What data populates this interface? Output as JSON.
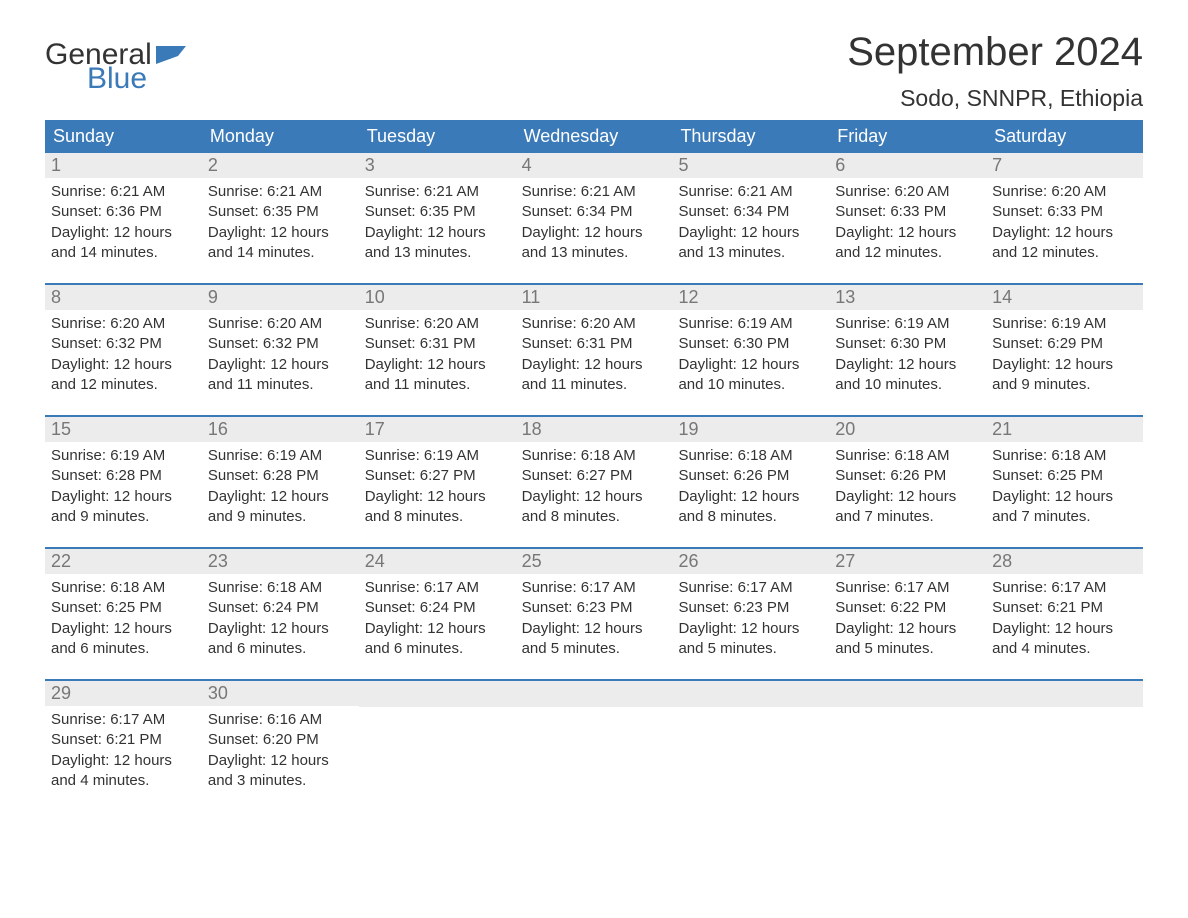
{
  "logo": {
    "line1": "General",
    "line2": "Blue",
    "color1": "#333333",
    "color2": "#3a7ab8"
  },
  "title": "September 2024",
  "location": "Sodo, SNNPR, Ethiopia",
  "weekdays": [
    "Sunday",
    "Monday",
    "Tuesday",
    "Wednesday",
    "Thursday",
    "Friday",
    "Saturday"
  ],
  "colors": {
    "header_bg": "#3a7ab8",
    "header_text": "#ffffff",
    "daynum_bg": "#ececec",
    "daynum_text": "#777777",
    "body_text": "#333333",
    "divider": "#3a7ab8",
    "background": "#ffffff"
  },
  "weeks": [
    [
      {
        "day": "1",
        "sunrise": "Sunrise: 6:21 AM",
        "sunset": "Sunset: 6:36 PM",
        "daylight1": "Daylight: 12 hours",
        "daylight2": "and 14 minutes."
      },
      {
        "day": "2",
        "sunrise": "Sunrise: 6:21 AM",
        "sunset": "Sunset: 6:35 PM",
        "daylight1": "Daylight: 12 hours",
        "daylight2": "and 14 minutes."
      },
      {
        "day": "3",
        "sunrise": "Sunrise: 6:21 AM",
        "sunset": "Sunset: 6:35 PM",
        "daylight1": "Daylight: 12 hours",
        "daylight2": "and 13 minutes."
      },
      {
        "day": "4",
        "sunrise": "Sunrise: 6:21 AM",
        "sunset": "Sunset: 6:34 PM",
        "daylight1": "Daylight: 12 hours",
        "daylight2": "and 13 minutes."
      },
      {
        "day": "5",
        "sunrise": "Sunrise: 6:21 AM",
        "sunset": "Sunset: 6:34 PM",
        "daylight1": "Daylight: 12 hours",
        "daylight2": "and 13 minutes."
      },
      {
        "day": "6",
        "sunrise": "Sunrise: 6:20 AM",
        "sunset": "Sunset: 6:33 PM",
        "daylight1": "Daylight: 12 hours",
        "daylight2": "and 12 minutes."
      },
      {
        "day": "7",
        "sunrise": "Sunrise: 6:20 AM",
        "sunset": "Sunset: 6:33 PM",
        "daylight1": "Daylight: 12 hours",
        "daylight2": "and 12 minutes."
      }
    ],
    [
      {
        "day": "8",
        "sunrise": "Sunrise: 6:20 AM",
        "sunset": "Sunset: 6:32 PM",
        "daylight1": "Daylight: 12 hours",
        "daylight2": "and 12 minutes."
      },
      {
        "day": "9",
        "sunrise": "Sunrise: 6:20 AM",
        "sunset": "Sunset: 6:32 PM",
        "daylight1": "Daylight: 12 hours",
        "daylight2": "and 11 minutes."
      },
      {
        "day": "10",
        "sunrise": "Sunrise: 6:20 AM",
        "sunset": "Sunset: 6:31 PM",
        "daylight1": "Daylight: 12 hours",
        "daylight2": "and 11 minutes."
      },
      {
        "day": "11",
        "sunrise": "Sunrise: 6:20 AM",
        "sunset": "Sunset: 6:31 PM",
        "daylight1": "Daylight: 12 hours",
        "daylight2": "and 11 minutes."
      },
      {
        "day": "12",
        "sunrise": "Sunrise: 6:19 AM",
        "sunset": "Sunset: 6:30 PM",
        "daylight1": "Daylight: 12 hours",
        "daylight2": "and 10 minutes."
      },
      {
        "day": "13",
        "sunrise": "Sunrise: 6:19 AM",
        "sunset": "Sunset: 6:30 PM",
        "daylight1": "Daylight: 12 hours",
        "daylight2": "and 10 minutes."
      },
      {
        "day": "14",
        "sunrise": "Sunrise: 6:19 AM",
        "sunset": "Sunset: 6:29 PM",
        "daylight1": "Daylight: 12 hours",
        "daylight2": "and 9 minutes."
      }
    ],
    [
      {
        "day": "15",
        "sunrise": "Sunrise: 6:19 AM",
        "sunset": "Sunset: 6:28 PM",
        "daylight1": "Daylight: 12 hours",
        "daylight2": "and 9 minutes."
      },
      {
        "day": "16",
        "sunrise": "Sunrise: 6:19 AM",
        "sunset": "Sunset: 6:28 PM",
        "daylight1": "Daylight: 12 hours",
        "daylight2": "and 9 minutes."
      },
      {
        "day": "17",
        "sunrise": "Sunrise: 6:19 AM",
        "sunset": "Sunset: 6:27 PM",
        "daylight1": "Daylight: 12 hours",
        "daylight2": "and 8 minutes."
      },
      {
        "day": "18",
        "sunrise": "Sunrise: 6:18 AM",
        "sunset": "Sunset: 6:27 PM",
        "daylight1": "Daylight: 12 hours",
        "daylight2": "and 8 minutes."
      },
      {
        "day": "19",
        "sunrise": "Sunrise: 6:18 AM",
        "sunset": "Sunset: 6:26 PM",
        "daylight1": "Daylight: 12 hours",
        "daylight2": "and 8 minutes."
      },
      {
        "day": "20",
        "sunrise": "Sunrise: 6:18 AM",
        "sunset": "Sunset: 6:26 PM",
        "daylight1": "Daylight: 12 hours",
        "daylight2": "and 7 minutes."
      },
      {
        "day": "21",
        "sunrise": "Sunrise: 6:18 AM",
        "sunset": "Sunset: 6:25 PM",
        "daylight1": "Daylight: 12 hours",
        "daylight2": "and 7 minutes."
      }
    ],
    [
      {
        "day": "22",
        "sunrise": "Sunrise: 6:18 AM",
        "sunset": "Sunset: 6:25 PM",
        "daylight1": "Daylight: 12 hours",
        "daylight2": "and 6 minutes."
      },
      {
        "day": "23",
        "sunrise": "Sunrise: 6:18 AM",
        "sunset": "Sunset: 6:24 PM",
        "daylight1": "Daylight: 12 hours",
        "daylight2": "and 6 minutes."
      },
      {
        "day": "24",
        "sunrise": "Sunrise: 6:17 AM",
        "sunset": "Sunset: 6:24 PM",
        "daylight1": "Daylight: 12 hours",
        "daylight2": "and 6 minutes."
      },
      {
        "day": "25",
        "sunrise": "Sunrise: 6:17 AM",
        "sunset": "Sunset: 6:23 PM",
        "daylight1": "Daylight: 12 hours",
        "daylight2": "and 5 minutes."
      },
      {
        "day": "26",
        "sunrise": "Sunrise: 6:17 AM",
        "sunset": "Sunset: 6:23 PM",
        "daylight1": "Daylight: 12 hours",
        "daylight2": "and 5 minutes."
      },
      {
        "day": "27",
        "sunrise": "Sunrise: 6:17 AM",
        "sunset": "Sunset: 6:22 PM",
        "daylight1": "Daylight: 12 hours",
        "daylight2": "and 5 minutes."
      },
      {
        "day": "28",
        "sunrise": "Sunrise: 6:17 AM",
        "sunset": "Sunset: 6:21 PM",
        "daylight1": "Daylight: 12 hours",
        "daylight2": "and 4 minutes."
      }
    ],
    [
      {
        "day": "29",
        "sunrise": "Sunrise: 6:17 AM",
        "sunset": "Sunset: 6:21 PM",
        "daylight1": "Daylight: 12 hours",
        "daylight2": "and 4 minutes."
      },
      {
        "day": "30",
        "sunrise": "Sunrise: 6:16 AM",
        "sunset": "Sunset: 6:20 PM",
        "daylight1": "Daylight: 12 hours",
        "daylight2": "and 3 minutes."
      },
      null,
      null,
      null,
      null,
      null
    ]
  ]
}
